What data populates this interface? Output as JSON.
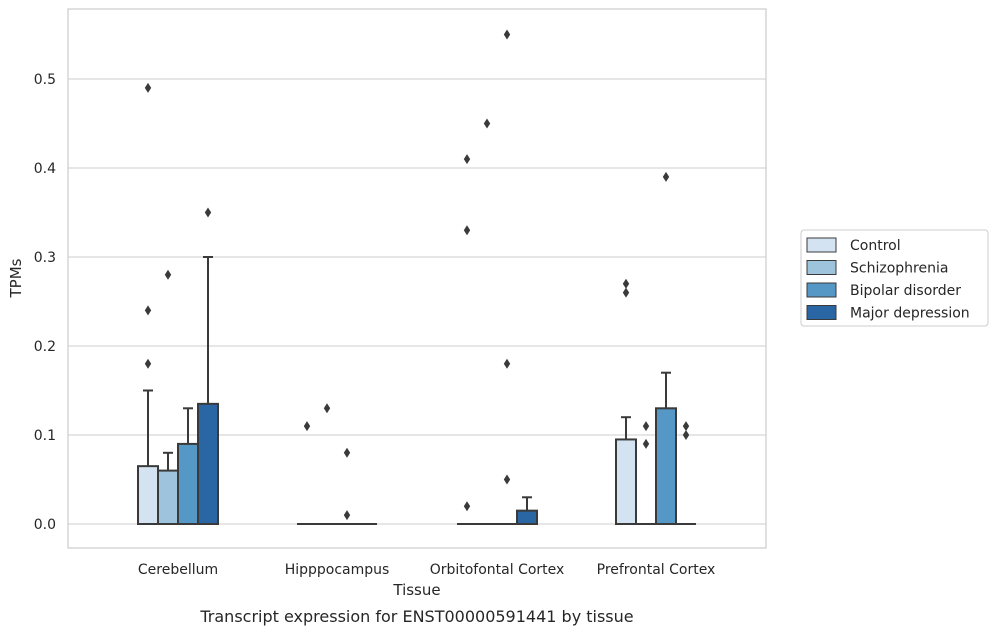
{
  "chart_data": {
    "type": "boxplot",
    "title": "",
    "caption": "Transcript expression for ENST00000591441 by tissue",
    "xlabel": "Tissue",
    "ylabel": "TPMs",
    "ylim": [
      -0.028,
      0.58
    ],
    "yticks": [
      0.0,
      0.1,
      0.2,
      0.3,
      0.4,
      0.5
    ],
    "ytick_labels": [
      "0.0",
      "0.1",
      "0.2",
      "0.3",
      "0.4",
      "0.5"
    ],
    "grid": true,
    "legend_position": "right",
    "categories": [
      "Cerebellum",
      "Hipppocampus",
      "Orbitofontal Cortex",
      "Prefrontal Cortex"
    ],
    "series": [
      {
        "name": "Control",
        "color": "#d4e3f1",
        "boxes": [
          {
            "q1": 0.0,
            "median": 0.0,
            "q3": 0.065,
            "whisker_low": 0.0,
            "whisker_high": 0.15,
            "fliers": [
              0.49,
              0.24,
              0.18
            ]
          },
          {
            "q1": 0.0,
            "median": 0.0,
            "q3": 0.0,
            "whisker_low": 0.0,
            "whisker_high": 0.0,
            "fliers": [
              0.11
            ]
          },
          {
            "q1": 0.0,
            "median": 0.0,
            "q3": 0.0,
            "whisker_low": 0.0,
            "whisker_high": 0.0,
            "fliers": [
              0.41,
              0.33,
              0.02
            ]
          },
          {
            "q1": 0.0,
            "median": 0.0,
            "q3": 0.095,
            "whisker_low": 0.0,
            "whisker_high": 0.12,
            "fliers": [
              0.27,
              0.26
            ]
          }
        ]
      },
      {
        "name": "Schizophrenia",
        "color": "#9ec4dd",
        "boxes": [
          {
            "q1": 0.0,
            "median": 0.0,
            "q3": 0.06,
            "whisker_low": 0.0,
            "whisker_high": 0.08,
            "fliers": [
              0.28
            ]
          },
          {
            "q1": 0.0,
            "median": 0.0,
            "q3": 0.0,
            "whisker_low": 0.0,
            "whisker_high": 0.0,
            "fliers": [
              0.13
            ]
          },
          {
            "q1": 0.0,
            "median": 0.0,
            "q3": 0.0,
            "whisker_low": 0.0,
            "whisker_high": 0.0,
            "fliers": [
              0.45
            ]
          },
          {
            "q1": 0.0,
            "median": 0.0,
            "q3": 0.0,
            "whisker_low": 0.0,
            "whisker_high": 0.0,
            "fliers": [
              0.11,
              0.09
            ]
          }
        ]
      },
      {
        "name": "Bipolar disorder",
        "color": "#5597c5",
        "boxes": [
          {
            "q1": 0.0,
            "median": 0.0,
            "q3": 0.09,
            "whisker_low": 0.0,
            "whisker_high": 0.13,
            "fliers": []
          },
          {
            "q1": 0.0,
            "median": 0.0,
            "q3": 0.0,
            "whisker_low": 0.0,
            "whisker_high": 0.0,
            "fliers": [
              0.08,
              0.01
            ]
          },
          {
            "q1": 0.0,
            "median": 0.0,
            "q3": 0.0,
            "whisker_low": 0.0,
            "whisker_high": 0.0,
            "fliers": [
              0.55,
              0.18,
              0.05
            ]
          },
          {
            "q1": 0.0,
            "median": 0.0,
            "q3": 0.13,
            "whisker_low": 0.0,
            "whisker_high": 0.17,
            "fliers": [
              0.39
            ]
          }
        ]
      },
      {
        "name": "Major depression",
        "color": "#2a66a3",
        "boxes": [
          {
            "q1": 0.0,
            "median": 0.0,
            "q3": 0.135,
            "whisker_low": 0.0,
            "whisker_high": 0.3,
            "fliers": [
              0.35
            ]
          },
          {
            "q1": 0.0,
            "median": 0.0,
            "q3": 0.0,
            "whisker_low": 0.0,
            "whisker_high": 0.0,
            "fliers": []
          },
          {
            "q1": 0.0,
            "median": 0.0,
            "q3": 0.015,
            "whisker_low": 0.0,
            "whisker_high": 0.03,
            "fliers": []
          },
          {
            "q1": 0.0,
            "median": 0.0,
            "q3": 0.0,
            "whisker_low": 0.0,
            "whisker_high": 0.0,
            "fliers": [
              0.11,
              0.1
            ]
          }
        ]
      }
    ],
    "colors": {
      "grid": "#cccccc",
      "frame": "#cccccc",
      "box_edge": "#3a3a3a",
      "flier": "#3a3a3a"
    }
  }
}
